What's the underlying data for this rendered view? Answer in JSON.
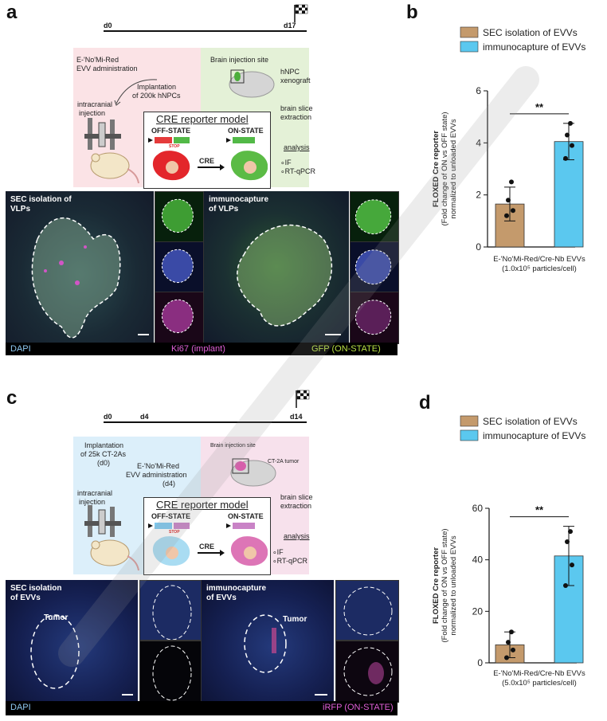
{
  "panels": {
    "a": {
      "letter": "a",
      "timeline": {
        "start": "d0",
        "end": "d17"
      },
      "left_box": {
        "line1": "E-ʹNoʹMi-Red",
        "line2": "EVV administration",
        "implant1": "Implantation",
        "implant2": "of 200k hNPCs",
        "inj1": "intracranial",
        "inj2": "injection"
      },
      "right_box": {
        "site": "Brain injection site",
        "xeno1": "hNPC",
        "xeno2": "xenograft",
        "slice1": "brain slice",
        "slice2": "extraction",
        "analysis": "analysis",
        "if": "IF",
        "qpcr": "RT-qPCR"
      },
      "cre_box": {
        "title": "CRE reporter model",
        "off": "OFF-STATE",
        "on": "ON-STATE",
        "stop": "STOP",
        "cre": "CRE"
      },
      "micro_left_label1": "SEC isolation of VLPs",
      "micro_right_label1": "immunocapture",
      "micro_right_label2": "of VLPs",
      "strip": {
        "dapi": "DAPI",
        "ki67": "Ki67 (implant)",
        "gfp": "GFP (ON-STATE)"
      }
    },
    "b": {
      "letter": "b"
    },
    "c": {
      "letter": "c",
      "timeline": {
        "t0": "d0",
        "t1": "d4",
        "end": "d14"
      },
      "left_box": {
        "implant1": "Implantation",
        "implant2": "of 25k CT-2As",
        "implant3": "(d0)",
        "evv1": "E-ʹNoʹMi-Red",
        "evv2": "EVV administration",
        "evv3": "(d4)",
        "inj1": "intracranial",
        "inj2": "injection"
      },
      "right_box": {
        "site": "Brain injection site",
        "tumor": "CT-2A tumor",
        "slice1": "brain slice",
        "slice2": "extraction",
        "analysis": "analysis",
        "if": "IF",
        "qpcr": "RT-qPCR"
      },
      "cre_box": {
        "title": "CRE reporter model",
        "off": "OFF-STATE",
        "on": "ON-STATE",
        "stop": "STOP",
        "cre": "CRE"
      },
      "micro_left_label1": "SEC isolation",
      "micro_left_label2": "of EVVs",
      "micro_right_label1": "immunocapture",
      "micro_right_label2": "of EVVs",
      "tumor": "Tumor",
      "strip": {
        "dapi": "DAPI",
        "irfp": "iRFP (ON-STATE)"
      }
    },
    "d": {
      "letter": "d"
    }
  },
  "chart_data": [
    {
      "type": "bar",
      "panel": "b",
      "legend": [
        "SEC isolation of EVVs",
        "immunocapture of EVVs"
      ],
      "colors": [
        "#c49a6c",
        "#5bc8ef"
      ],
      "ylabel1": "FLOXED Cre reporter",
      "ylabel2": "(Fold change of ON vs OFF state)",
      "ylabel3": "normalized to unloaded EVVs",
      "ylim": [
        0,
        6
      ],
      "yticks": [
        "0",
        "2",
        "4",
        "6"
      ],
      "values": [
        1.65,
        4.05
      ],
      "errors": [
        0.65,
        0.7
      ],
      "points": [
        [
          1.2,
          1.4,
          1.8,
          2.5
        ],
        [
          3.4,
          3.9,
          4.3,
          4.75
        ]
      ],
      "significance": "**",
      "xlabel1": "E-ʹNoʹMi-Red/Cre-Nb EVVs",
      "xlabel2": "(1.0x10⁵ particles/cell)"
    },
    {
      "type": "bar",
      "panel": "d",
      "legend": [
        "SEC isolation of EVVs",
        "immunocapture of EVVs"
      ],
      "colors": [
        "#c49a6c",
        "#5bc8ef"
      ],
      "ylabel1": "FLOXED Cre reporter",
      "ylabel2": "(Fold change of ON vs OFF state)",
      "ylabel3": "normalized to unloaded EVVs",
      "ylim": [
        0,
        60
      ],
      "yticks": [
        "0",
        "20",
        "40",
        "60"
      ],
      "values": [
        7,
        41.5
      ],
      "errors": [
        5,
        11.5
      ],
      "points": [
        [
          2,
          5,
          8,
          12
        ],
        [
          30,
          38,
          47,
          51
        ]
      ],
      "significance": "**",
      "xlabel1": "E-ʹNoʹMi-Red/Cre-Nb EVVs",
      "xlabel2": "(5.0x10⁵ particles/cell)"
    }
  ]
}
